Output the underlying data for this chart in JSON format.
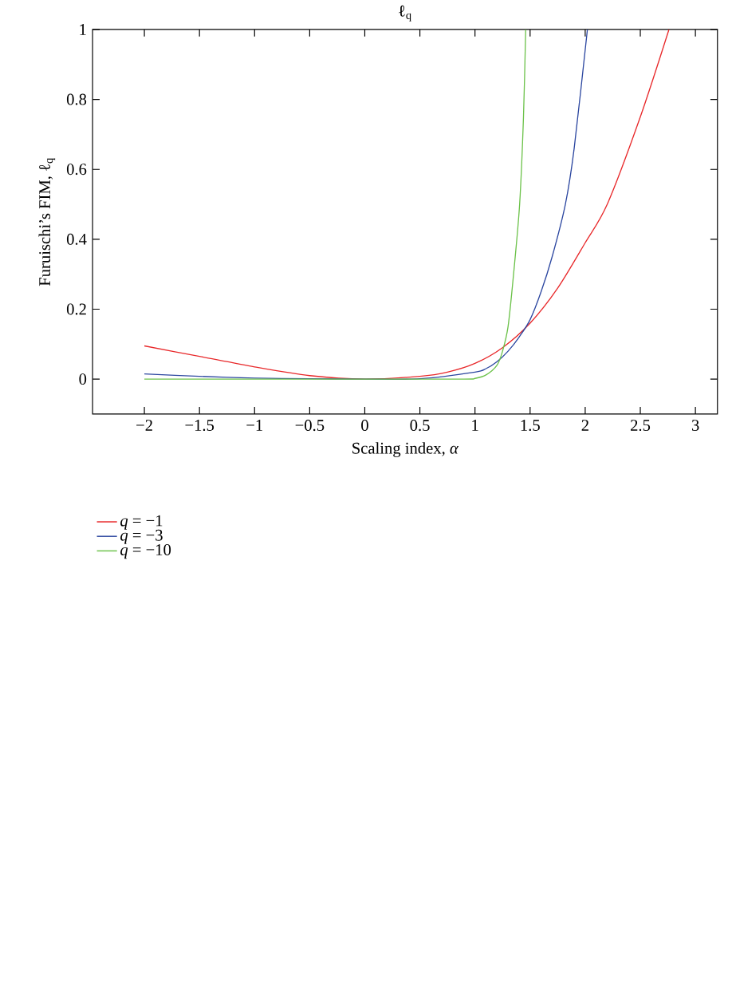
{
  "chart_data": {
    "type": "line",
    "title": "ℓ$_{q}$",
    "xlabel": "Scaling index, *α*",
    "ylabel": "Furuischi’s FIM, ℓ$_{q}$",
    "xlim": [
      -2.47,
      3.2
    ],
    "ylim": [
      -0.1,
      1
    ],
    "xticks": [
      {
        "value": -2,
        "label": "−2"
      },
      {
        "value": -1.5,
        "label": "−1.5"
      },
      {
        "value": -1,
        "label": "−1"
      },
      {
        "value": -0.5,
        "label": "−0.5"
      },
      0,
      0.5,
      1,
      1.5,
      2,
      2.5,
      3
    ],
    "yticks": [
      0,
      0.2,
      0.4,
      0.6,
      0.8,
      1
    ],
    "legend": "bottom left",
    "line_style": "solid",
    "series": [
      {
        "name": "*q* = −1",
        "color": "#e8282a",
        "x": [
          -2,
          -1.5,
          -1,
          -0.5,
          0,
          0.5,
          0.75,
          1,
          1.25,
          1.5,
          1.75,
          2,
          2.2,
          2.5,
          2.76
        ],
        "values": [
          0.095,
          0.065,
          0.035,
          0.01,
          0,
          0.008,
          0.02,
          0.045,
          0.09,
          0.16,
          0.26,
          0.39,
          0.5,
          0.75,
          1
        ]
      },
      {
        "name": "*q* = −3",
        "color": "#2c47a0",
        "x": [
          -2,
          -1.5,
          -1,
          -0.5,
          0,
          0.5,
          1,
          1.1,
          1.2,
          1.3,
          1.4,
          1.5,
          1.6,
          1.7,
          1.82,
          1.9,
          2.02
        ],
        "values": [
          0.015,
          0.008,
          0.003,
          0.001,
          0,
          0.001,
          0.02,
          0.03,
          0.05,
          0.08,
          0.12,
          0.17,
          0.25,
          0.35,
          0.5,
          0.66,
          1
        ]
      },
      {
        "name": "*q* = −10",
        "color": "#6cc24a",
        "x": [
          -2,
          -1,
          0,
          0.9,
          1,
          1.1,
          1.2,
          1.25,
          1.3,
          1.35,
          1.405,
          1.44,
          1.46
        ],
        "values": [
          0,
          0,
          0,
          0,
          0.002,
          0.012,
          0.04,
          0.08,
          0.15,
          0.3,
          0.5,
          0.75,
          1
        ]
      }
    ]
  }
}
